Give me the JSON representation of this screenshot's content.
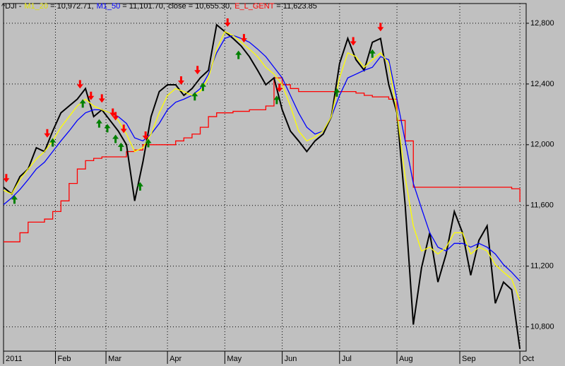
{
  "chart_data": {
    "type": "line",
    "title": "^DJI -",
    "x": [
      0,
      3,
      6,
      9,
      12,
      15,
      18,
      21,
      24,
      27,
      30,
      33,
      36,
      39,
      42,
      45,
      48,
      51,
      54,
      57,
      60,
      63,
      66,
      69,
      72,
      75,
      78,
      81,
      84,
      87,
      90,
      93,
      96,
      99,
      102,
      105,
      108,
      111,
      114,
      117,
      120,
      123,
      126,
      129,
      132,
      135,
      138,
      141,
      144,
      147,
      150,
      153,
      156,
      159,
      162,
      165,
      168,
      171,
      174,
      177,
      180,
      183,
      186,
      189
    ],
    "xlim": [
      0,
      190
    ],
    "xticks": [
      {
        "value": 0,
        "label": "2011"
      },
      {
        "value": 19,
        "label": "Feb"
      },
      {
        "value": 37.5,
        "label": "Mar"
      },
      {
        "value": 60,
        "label": "Apr"
      },
      {
        "value": 81,
        "label": "May"
      },
      {
        "value": 102,
        "label": "Jun"
      },
      {
        "value": 123,
        "label": "Jul"
      },
      {
        "value": 144,
        "label": "Aug"
      },
      {
        "value": 167,
        "label": "Sep"
      },
      {
        "value": 189,
        "label": "Oct"
      }
    ],
    "ylim": [
      10640,
      12930
    ],
    "yticks": [
      {
        "value": 10800,
        "label": "10,800"
      },
      {
        "value": 11200,
        "label": "11,200"
      },
      {
        "value": 11600,
        "label": "11,600"
      },
      {
        "value": 12000,
        "label": "12,000"
      },
      {
        "value": 12400,
        "label": "12,400"
      },
      {
        "value": 12800,
        "label": "12,800"
      }
    ],
    "grid": true,
    "series": [
      {
        "name": "M1_20",
        "color": "#ffff00",
        "last_label": "10,972.71",
        "values": [
          11700,
          11675,
          11770,
          11840,
          11905,
          11955,
          12025,
          12115,
          12185,
          12255,
          12300,
          12255,
          12230,
          12210,
          12160,
          12070,
          11955,
          11980,
          12070,
          12210,
          12325,
          12370,
          12350,
          12325,
          12350,
          12440,
          12630,
          12745,
          12720,
          12675,
          12630,
          12580,
          12510,
          12465,
          12395,
          12255,
          12090,
          12025,
          12050,
          12090,
          12185,
          12440,
          12605,
          12580,
          12510,
          12560,
          12605,
          12535,
          12210,
          11790,
          11465,
          11300,
          11325,
          11280,
          11325,
          11420,
          11420,
          11280,
          11325,
          11300,
          11210,
          11160,
          11115,
          10972.71
        ]
      },
      {
        "name": "M1_50",
        "color": "#0000ff",
        "last_label": "11,101.70",
        "values": [
          11605,
          11650,
          11705,
          11770,
          11840,
          11885,
          11955,
          12025,
          12090,
          12160,
          12210,
          12230,
          12230,
          12210,
          12185,
          12140,
          12045,
          12025,
          12070,
          12140,
          12230,
          12280,
          12300,
          12325,
          12370,
          12465,
          12605,
          12700,
          12720,
          12700,
          12675,
          12630,
          12580,
          12510,
          12440,
          12325,
          12210,
          12115,
          12070,
          12090,
          12185,
          12325,
          12440,
          12465,
          12490,
          12510,
          12580,
          12560,
          12300,
          12025,
          11745,
          11580,
          11420,
          11325,
          11300,
          11350,
          11350,
          11325,
          11350,
          11325,
          11280,
          11210,
          11160,
          11101.7
        ]
      },
      {
        "name": "close",
        "color": "#000000",
        "last_label": "10,655.30",
        "values": [
          11720,
          11675,
          11790,
          11840,
          11980,
          11955,
          12090,
          12210,
          12255,
          12300,
          12370,
          12185,
          12230,
          12160,
          12090,
          12000,
          11630,
          11885,
          12185,
          12350,
          12395,
          12395,
          12325,
          12370,
          12440,
          12490,
          12790,
          12745,
          12700,
          12650,
          12580,
          12490,
          12395,
          12440,
          12230,
          12090,
          12025,
          11955,
          12025,
          12070,
          12185,
          12535,
          12700,
          12560,
          12490,
          12675,
          12700,
          12395,
          12210,
          11605,
          10815,
          11190,
          11420,
          11095,
          11280,
          11560,
          11420,
          11140,
          11370,
          11465,
          10955,
          11095,
          11045,
          10655.3
        ]
      },
      {
        "name": "E_L_GENT",
        "color": "#ff0000",
        "last_label": "11,623.85",
        "step": true,
        "values": [
          11360,
          11360,
          11420,
          11490,
          11490,
          11510,
          11560,
          11630,
          11745,
          11840,
          11895,
          11910,
          11920,
          11920,
          11920,
          11955,
          11965,
          12000,
          12000,
          12000,
          12000,
          12025,
          12045,
          12070,
          12115,
          12185,
          12210,
          12210,
          12220,
          12220,
          12230,
          12230,
          12255,
          12440,
          12395,
          12370,
          12350,
          12350,
          12350,
          12350,
          12350,
          12350,
          12350,
          12340,
          12325,
          12315,
          12315,
          12300,
          12160,
          12025,
          11720,
          11720,
          11720,
          11720,
          11720,
          11720,
          11720,
          11720,
          11720,
          11720,
          11720,
          11720,
          11710,
          11623.85
        ]
      }
    ],
    "signals": {
      "sell": {
        "color": "#ff0000",
        "x": [
          1,
          16,
          28,
          32,
          36,
          40,
          41,
          44,
          52,
          65,
          71,
          82,
          88,
          101,
          128,
          138
        ]
      },
      "buy": {
        "color": "#008000",
        "x": [
          4,
          18,
          29,
          35,
          38,
          41,
          43,
          50,
          53,
          70,
          73,
          86,
          100,
          122,
          135
        ]
      }
    }
  }
}
